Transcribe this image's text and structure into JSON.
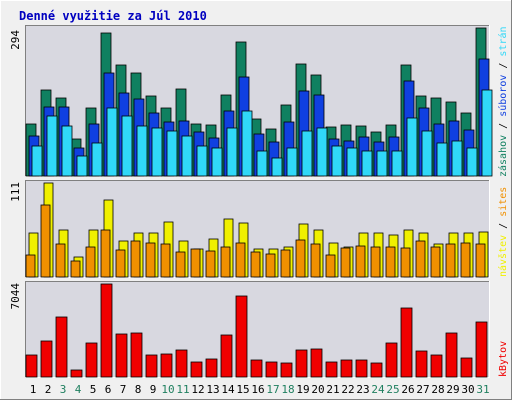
{
  "title": "Denné využitie za Júl 2010",
  "colors": {
    "title": "#0000c0",
    "frame": "#a8a8a8",
    "panel": "#d8d8e0",
    "weekend": "#208060",
    "weekday": "#000000",
    "hits": "#108060",
    "files": "#1040e0",
    "pages": "#30d8f8",
    "visits": "#f0f000",
    "sites": "#f09000",
    "kbytes": "#f00000"
  },
  "chart_data": [
    {
      "type": "bar",
      "panel": "top",
      "ylabel_value": "294",
      "ylim": [
        0,
        294
      ],
      "legend": [
        {
          "label": "zásahov",
          "color": "#108060"
        },
        {
          "label": " / ",
          "color": "#000000"
        },
        {
          "label": "súborov",
          "color": "#1040e0"
        },
        {
          "label": " / ",
          "color": "#000000"
        },
        {
          "label": "strán",
          "color": "#30d8f8"
        }
      ],
      "categories": [
        "1",
        "2",
        "3",
        "4",
        "5",
        "6",
        "7",
        "8",
        "9",
        "10",
        "11",
        "12",
        "13",
        "14",
        "15",
        "16",
        "17",
        "18",
        "19",
        "20",
        "21",
        "22",
        "23",
        "24",
        "25",
        "26",
        "27",
        "28",
        "29",
        "30",
        "31"
      ],
      "series": [
        {
          "name": "zásahov",
          "color": "#108060",
          "values": [
            103,
            171,
            155,
            74,
            135,
            285,
            220,
            205,
            158,
            135,
            172,
            103,
            102,
            161,
            266,
            113,
            93,
            141,
            222,
            200,
            98,
            101,
            100,
            87,
            102,
            220,
            158,
            154,
            147,
            125,
            294
          ]
        },
        {
          "name": "súborov",
          "color": "#1040e0",
          "values": [
            80,
            138,
            138,
            55,
            103,
            205,
            164,
            153,
            126,
            108,
            109,
            87,
            75,
            129,
            197,
            83,
            68,
            107,
            169,
            160,
            73,
            70,
            77,
            68,
            77,
            188,
            136,
            103,
            109,
            92,
            232
          ]
        },
        {
          "name": "strán",
          "color": "#30d8f8",
          "values": [
            60,
            120,
            100,
            40,
            65,
            135,
            120,
            100,
            95,
            90,
            80,
            60,
            55,
            95,
            130,
            50,
            35,
            55,
            90,
            95,
            60,
            55,
            50,
            50,
            50,
            115,
            90,
            65,
            70,
            55,
            170
          ]
        }
      ]
    },
    {
      "type": "bar",
      "panel": "middle",
      "ylabel_value": "111",
      "ylim": [
        0,
        111
      ],
      "legend": [
        {
          "label": "návštev",
          "color": "#f0f000"
        },
        {
          "label": " / ",
          "color": "#000000"
        },
        {
          "label": "sites",
          "color": "#f09000"
        }
      ],
      "categories": [
        "1",
        "2",
        "3",
        "4",
        "5",
        "6",
        "7",
        "8",
        "9",
        "10",
        "11",
        "12",
        "13",
        "14",
        "15",
        "16",
        "17",
        "18",
        "19",
        "20",
        "21",
        "22",
        "23",
        "24",
        "25",
        "26",
        "27",
        "28",
        "29",
        "30",
        "31"
      ],
      "series": [
        {
          "name": "návštev",
          "color": "#f0f000",
          "values": [
            52,
            111,
            56,
            24,
            55,
            91,
            42,
            52,
            52,
            65,
            42,
            33,
            45,
            68,
            64,
            33,
            33,
            35,
            62,
            55,
            40,
            35,
            52,
            52,
            50,
            56,
            52,
            39,
            52,
            52,
            53
          ]
        },
        {
          "name": "sites",
          "color": "#f09000",
          "values": [
            26,
            85,
            39,
            19,
            35,
            55,
            32,
            42,
            40,
            39,
            29,
            33,
            31,
            36,
            40,
            30,
            27,
            32,
            44,
            39,
            26,
            34,
            37,
            35,
            35,
            34,
            42,
            36,
            39,
            40,
            39
          ]
        }
      ]
    },
    {
      "type": "bar",
      "panel": "bottom",
      "ylabel_value": "7044",
      "ylim": [
        0,
        7044
      ],
      "legend": [
        {
          "label": "kBytov",
          "color": "#f00000"
        }
      ],
      "categories": [
        "1",
        "2",
        "3",
        "4",
        "5",
        "6",
        "7",
        "8",
        "9",
        "10",
        "11",
        "12",
        "13",
        "14",
        "15",
        "16",
        "17",
        "18",
        "19",
        "20",
        "21",
        "22",
        "23",
        "24",
        "25",
        "26",
        "27",
        "28",
        "29",
        "30",
        "31"
      ],
      "series": [
        {
          "name": "kBytov",
          "color": "#f00000",
          "values": [
            1650,
            2750,
            4550,
            550,
            2550,
            7044,
            3250,
            3350,
            1650,
            1750,
            2050,
            1150,
            1350,
            3150,
            6150,
            1250,
            1150,
            1050,
            2050,
            2150,
            1150,
            1250,
            1250,
            1050,
            2550,
            5200,
            1950,
            1650,
            3350,
            1450,
            4200
          ]
        }
      ]
    }
  ],
  "x_axis": {
    "labels": [
      "1",
      "2",
      "3",
      "4",
      "5",
      "6",
      "7",
      "8",
      "9",
      "10",
      "11",
      "12",
      "13",
      "14",
      "15",
      "16",
      "17",
      "18",
      "19",
      "20",
      "21",
      "22",
      "23",
      "24",
      "25",
      "26",
      "27",
      "28",
      "29",
      "30",
      "31"
    ],
    "weekend_days": [
      "3",
      "4",
      "10",
      "11",
      "17",
      "18",
      "24",
      "25",
      "31"
    ]
  }
}
